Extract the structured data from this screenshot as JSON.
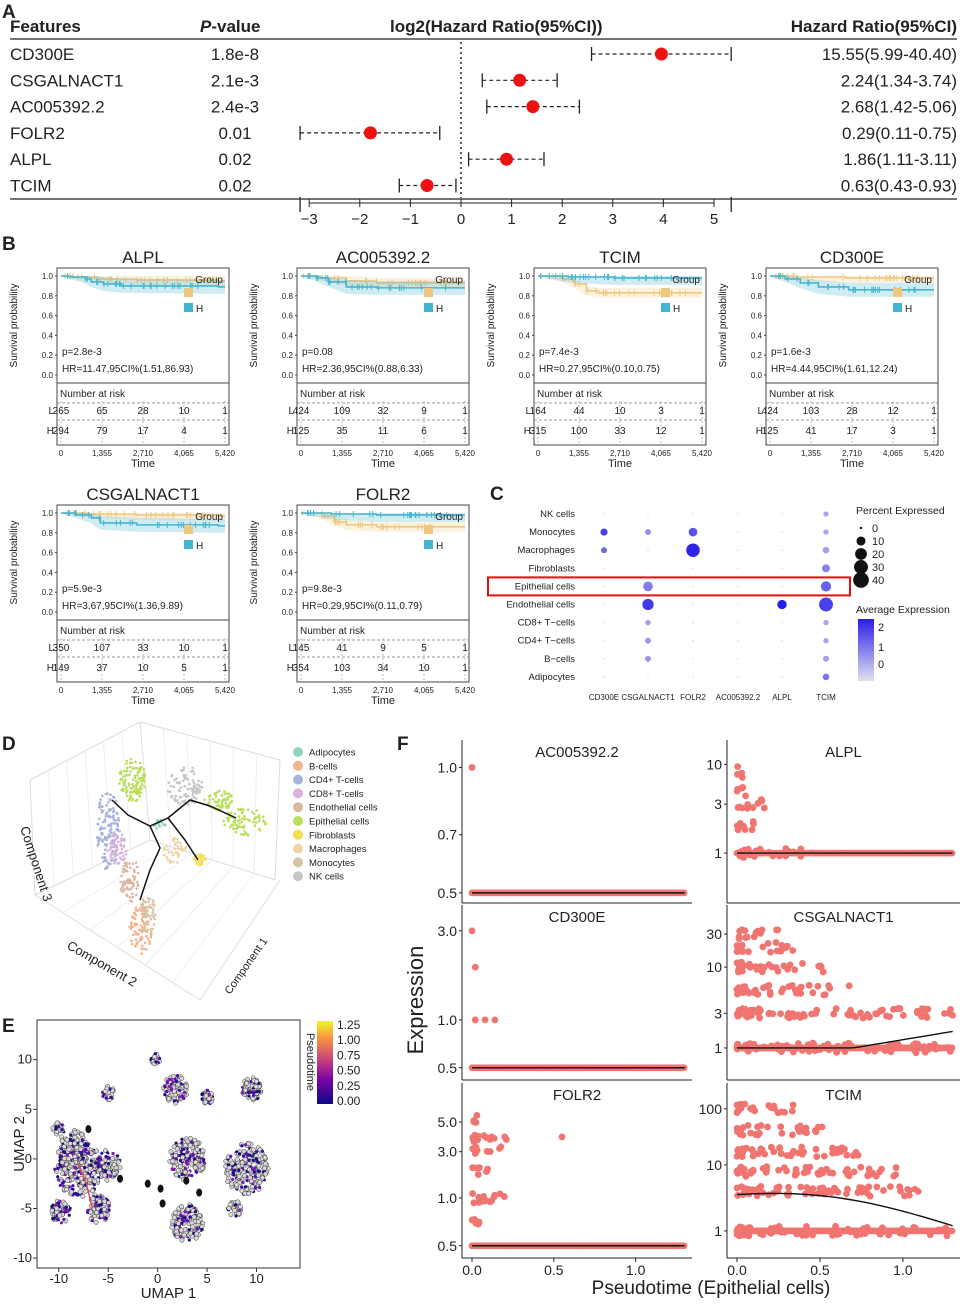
{
  "panels": {
    "A": "A",
    "B": "B",
    "C": "C",
    "D": "D",
    "E": "E",
    "F": "F"
  },
  "chart_data": [
    {
      "panel": "A",
      "type": "forest",
      "headers": {
        "features": "Features",
        "p_prefix": "P",
        "p_suffix": "-value",
        "axis": "log2(Hazard Ratio(95%CI))",
        "hr": "Hazard Ratio(95%CI)"
      },
      "rows": [
        {
          "feature": "CD300E",
          "p": "1.8e-8",
          "log2hr": 3.96,
          "lo": 2.58,
          "hi": 5.34,
          "hr": "15.55(5.99-40.40)"
        },
        {
          "feature": "CSGALNACT1",
          "p": "2.1e-3",
          "log2hr": 1.16,
          "lo": 0.42,
          "hi": 1.9,
          "hr": "2.24(1.34-3.74)"
        },
        {
          "feature": "AC005392.2",
          "p": "2.4e-3",
          "log2hr": 1.42,
          "lo": 0.51,
          "hi": 2.34,
          "hr": "2.68(1.42-5.06)"
        },
        {
          "feature": "FOLR2",
          "p": "0.01",
          "log2hr": -1.79,
          "lo": -3.18,
          "hi": -0.42,
          "hr": "0.29(0.11-0.75)"
        },
        {
          "feature": "ALPL",
          "p": "0.02",
          "log2hr": 0.9,
          "lo": 0.15,
          "hi": 1.64,
          "hr": "1.86(1.11-3.11)"
        },
        {
          "feature": "TCIM",
          "p": "0.02",
          "log2hr": -0.67,
          "lo": -1.22,
          "hi": -0.1,
          "hr": "0.63(0.43-0.93)"
        }
      ],
      "xlim": [
        -3.4,
        5.4
      ],
      "ticks": [
        -3,
        -2,
        -1,
        0,
        1,
        2,
        3,
        4,
        5
      ],
      "tick_labels": [
        "−3",
        "−2",
        "−1",
        "0",
        "1",
        "2",
        "3",
        "4",
        "5"
      ]
    },
    {
      "panel": "B",
      "type": "kaplan-meier",
      "ylabel": "Survival probability",
      "xlabel": "Time",
      "yticks": [
        "0.0",
        "0.2",
        "0.4",
        "0.6",
        "0.8",
        "1.0"
      ],
      "xticks": [
        "0",
        "1,355",
        "2,710",
        "4,065",
        "5,420"
      ],
      "group_title": "Group",
      "group_high": "H",
      "risk_title": "Number at risk",
      "colors": {
        "L": "#f0c77f",
        "H": "#45b5cf"
      },
      "plots": [
        {
          "gene": "ALPL",
          "p": "p=2.8e-3",
          "hr": "HR=11.47,95CI%(1.51,86.93)",
          "risk_L": [
            "265",
            "65",
            "28",
            "10",
            "1"
          ],
          "risk_H": [
            "294",
            "79",
            "17",
            "4",
            "1"
          ],
          "L": [
            [
              0,
              1.0
            ],
            [
              400,
              0.99
            ],
            [
              1200,
              0.97
            ],
            [
              2500,
              0.96
            ],
            [
              5200,
              0.95
            ]
          ],
          "H": [
            [
              0,
              1.0
            ],
            [
              300,
              0.99
            ],
            [
              800,
              0.97
            ],
            [
              1000,
              0.94
            ],
            [
              1400,
              0.92
            ],
            [
              2000,
              0.9
            ],
            [
              5200,
              0.89
            ]
          ]
        },
        {
          "gene": "AC005392.2",
          "p": "p=0.08",
          "hr": "HR=2.36,95CI%(0.88,6.33)",
          "risk_L": [
            "424",
            "109",
            "32",
            "9",
            "1"
          ],
          "risk_H": [
            "125",
            "35",
            "11",
            "6",
            "1"
          ],
          "L": [
            [
              0,
              1.0
            ],
            [
              700,
              0.98
            ],
            [
              1500,
              0.95
            ],
            [
              2500,
              0.93
            ],
            [
              5200,
              0.93
            ]
          ],
          "H": [
            [
              0,
              1.0
            ],
            [
              500,
              0.98
            ],
            [
              900,
              0.94
            ],
            [
              1500,
              0.89
            ],
            [
              2500,
              0.88
            ],
            [
              5200,
              0.88
            ]
          ]
        },
        {
          "gene": "TCIM",
          "p": "p=7.4e-3",
          "hr": "HR=0.27,95CI%(0.10,0.75)",
          "risk_L": [
            "164",
            "44",
            "10",
            "3",
            "1"
          ],
          "risk_H": [
            "315",
            "100",
            "33",
            "12",
            "1"
          ],
          "L": [
            [
              0,
              1.0
            ],
            [
              800,
              0.97
            ],
            [
              1200,
              0.92
            ],
            [
              1600,
              0.85
            ],
            [
              2000,
              0.83
            ],
            [
              5200,
              0.83
            ]
          ],
          "H": [
            [
              0,
              1.0
            ],
            [
              1000,
              0.99
            ],
            [
              2500,
              0.98
            ],
            [
              5200,
              0.98
            ]
          ]
        },
        {
          "gene": "CD300E",
          "p": "p=1.6e-3",
          "hr": "HR=4.44,95CI%(1.61,12.24)",
          "risk_L": [
            "424",
            "103",
            "28",
            "12",
            "1"
          ],
          "risk_H": [
            "125",
            "41",
            "17",
            "3",
            "1"
          ],
          "L": [
            [
              0,
              1.0
            ],
            [
              900,
              0.99
            ],
            [
              2500,
              0.98
            ],
            [
              5200,
              0.98
            ]
          ],
          "H": [
            [
              0,
              1.0
            ],
            [
              500,
              0.97
            ],
            [
              1000,
              0.93
            ],
            [
              1600,
              0.89
            ],
            [
              2600,
              0.86
            ],
            [
              5200,
              0.86
            ]
          ]
        },
        {
          "gene": "CSGALNACT1",
          "p": "p=5.9e-3",
          "hr": "HR=3.67,95CI%(1.36,9.89)",
          "risk_L": [
            "350",
            "107",
            "33",
            "10",
            "1"
          ],
          "risk_H": [
            "149",
            "37",
            "10",
            "5",
            "1"
          ],
          "L": [
            [
              0,
              1.0
            ],
            [
              900,
              0.99
            ],
            [
              2500,
              0.98
            ],
            [
              5200,
              0.97
            ]
          ],
          "H": [
            [
              0,
              1.0
            ],
            [
              500,
              0.98
            ],
            [
              1000,
              0.95
            ],
            [
              1300,
              0.9
            ],
            [
              2500,
              0.88
            ],
            [
              5200,
              0.87
            ]
          ]
        },
        {
          "gene": "FOLR2",
          "p": "p=9.8e-3",
          "hr": "HR=0.29,95CI%(0.11,0.79)",
          "risk_L": [
            "145",
            "41",
            "9",
            "5",
            "1"
          ],
          "risk_H": [
            "354",
            "103",
            "34",
            "10",
            "1"
          ],
          "L": [
            [
              0,
              1.0
            ],
            [
              700,
              0.97
            ],
            [
              1100,
              0.91
            ],
            [
              1500,
              0.88
            ],
            [
              2500,
              0.86
            ],
            [
              5200,
              0.86
            ]
          ],
          "H": [
            [
              0,
              1.0
            ],
            [
              1000,
              0.99
            ],
            [
              2500,
              0.98
            ],
            [
              5200,
              0.98
            ]
          ]
        }
      ]
    },
    {
      "panel": "C",
      "type": "dotplot",
      "rows": [
        "NK cells",
        "Monocytes",
        "Macrophages",
        "Fibroblasts",
        "Epithelial cells",
        "Endothelial cells",
        "CD8+ T−cells",
        "CD4+ T−cells",
        "B−cells",
        "Adipocytes"
      ],
      "cols": [
        "CD300E",
        "CSGALNACT1",
        "FOLR2",
        "AC005392.2",
        "ALPL",
        "TCIM"
      ],
      "highlight_row": "Epithelial cells",
      "size_title": "Percent Expressed",
      "size_legend": [
        "0",
        "10",
        "20",
        "30",
        "40"
      ],
      "color_title": "Average Expression",
      "color_legend": [
        "2",
        "1",
        "0"
      ],
      "cells": [
        [
          "NK cells",
          "TCIM",
          2,
          0.3
        ],
        [
          "Monocytes",
          "CD300E",
          5,
          1.8
        ],
        [
          "Monocytes",
          "CSGALNACT1",
          3,
          0.6
        ],
        [
          "Monocytes",
          "FOLR2",
          9,
          1.5
        ],
        [
          "Monocytes",
          "TCIM",
          2,
          0.3
        ],
        [
          "Macrophages",
          "CD300E",
          3,
          1.2
        ],
        [
          "Macrophages",
          "FOLR2",
          28,
          2.2
        ],
        [
          "Macrophages",
          "TCIM",
          4,
          0.4
        ],
        [
          "Fibroblasts",
          "TCIM",
          7,
          0.8
        ],
        [
          "Epithelial cells",
          "CSGALNACT1",
          12,
          0.9
        ],
        [
          "Epithelial cells",
          "TCIM",
          14,
          1.3
        ],
        [
          "Endothelial cells",
          "CSGALNACT1",
          18,
          1.9
        ],
        [
          "Endothelial cells",
          "ALPL",
          11,
          2.3
        ],
        [
          "Endothelial cells",
          "TCIM",
          30,
          1.8
        ],
        [
          "CD8+ T−cells",
          "CSGALNACT1",
          2,
          0.4
        ],
        [
          "CD8+ T−cells",
          "TCIM",
          2,
          0.3
        ],
        [
          "CD4+ T−cells",
          "CSGALNACT1",
          3,
          0.5
        ],
        [
          "CD4+ T−cells",
          "TCIM",
          2,
          0.3
        ],
        [
          "B−cells",
          "CSGALNACT1",
          3,
          0.5
        ],
        [
          "B−cells",
          "TCIM",
          3,
          0.4
        ],
        [
          "Adipocytes",
          "TCIM",
          4,
          1.0
        ]
      ]
    },
    {
      "panel": "D",
      "type": "scatter3d",
      "axis_labels": {
        "x": "Component 1",
        "y": "Component 2",
        "z": "Component 3"
      },
      "legend": [
        {
          "name": "Adipocytes",
          "color": "#8fd6b8"
        },
        {
          "name": "B-cells",
          "color": "#f2b28a"
        },
        {
          "name": "CD4+ T-cells",
          "color": "#a9b4dc"
        },
        {
          "name": "CD8+ T-cells",
          "color": "#dcb1e0"
        },
        {
          "name": "Endothelial cells",
          "color": "#d9b8a3"
        },
        {
          "name": "Epithelial cells",
          "color": "#b9df5c"
        },
        {
          "name": "Fibroblasts",
          "color": "#f2e052"
        },
        {
          "name": "Macrophages",
          "color": "#eed5a6"
        },
        {
          "name": "Monocytes",
          "color": "#d9c3a6"
        },
        {
          "name": "NK cells",
          "color": "#c6c6c6"
        }
      ]
    },
    {
      "panel": "E",
      "type": "umap",
      "xlabel": "UMAP 1",
      "ylabel": "UMAP 2",
      "xticks": [
        "-10",
        "-5",
        "0",
        "5",
        "10"
      ],
      "yticks": [
        "10",
        "5",
        "0",
        "-5",
        "-10"
      ],
      "legend_title": "Pseudotime",
      "legend_ticks": [
        "1.25",
        "1.00",
        "0.75",
        "0.50",
        "0.25",
        "0.00"
      ]
    },
    {
      "panel": "F",
      "type": "scatter",
      "xlabel": "Pseudotime (Epithelial cells)",
      "ylabel": "Expression",
      "xticks": [
        "0.0",
        "0.5",
        "1.0"
      ],
      "plots": [
        {
          "gene": "AC005392.2",
          "yticks": [
            "1.0",
            "0.7",
            "0.5"
          ]
        },
        {
          "gene": "ALPL",
          "yticks": [
            "10",
            "3",
            "1"
          ]
        },
        {
          "gene": "CD300E",
          "yticks": [
            "3.0",
            "1.0",
            "0.5"
          ]
        },
        {
          "gene": "CSGALNACT1",
          "yticks": [
            "30",
            "10",
            "3",
            "1"
          ]
        },
        {
          "gene": "FOLR2",
          "yticks": [
            "5.0",
            "3.0",
            "1.0",
            "0.5"
          ]
        },
        {
          "gene": "TCIM",
          "yticks": [
            "100",
            "10",
            "1"
          ]
        }
      ]
    }
  ]
}
